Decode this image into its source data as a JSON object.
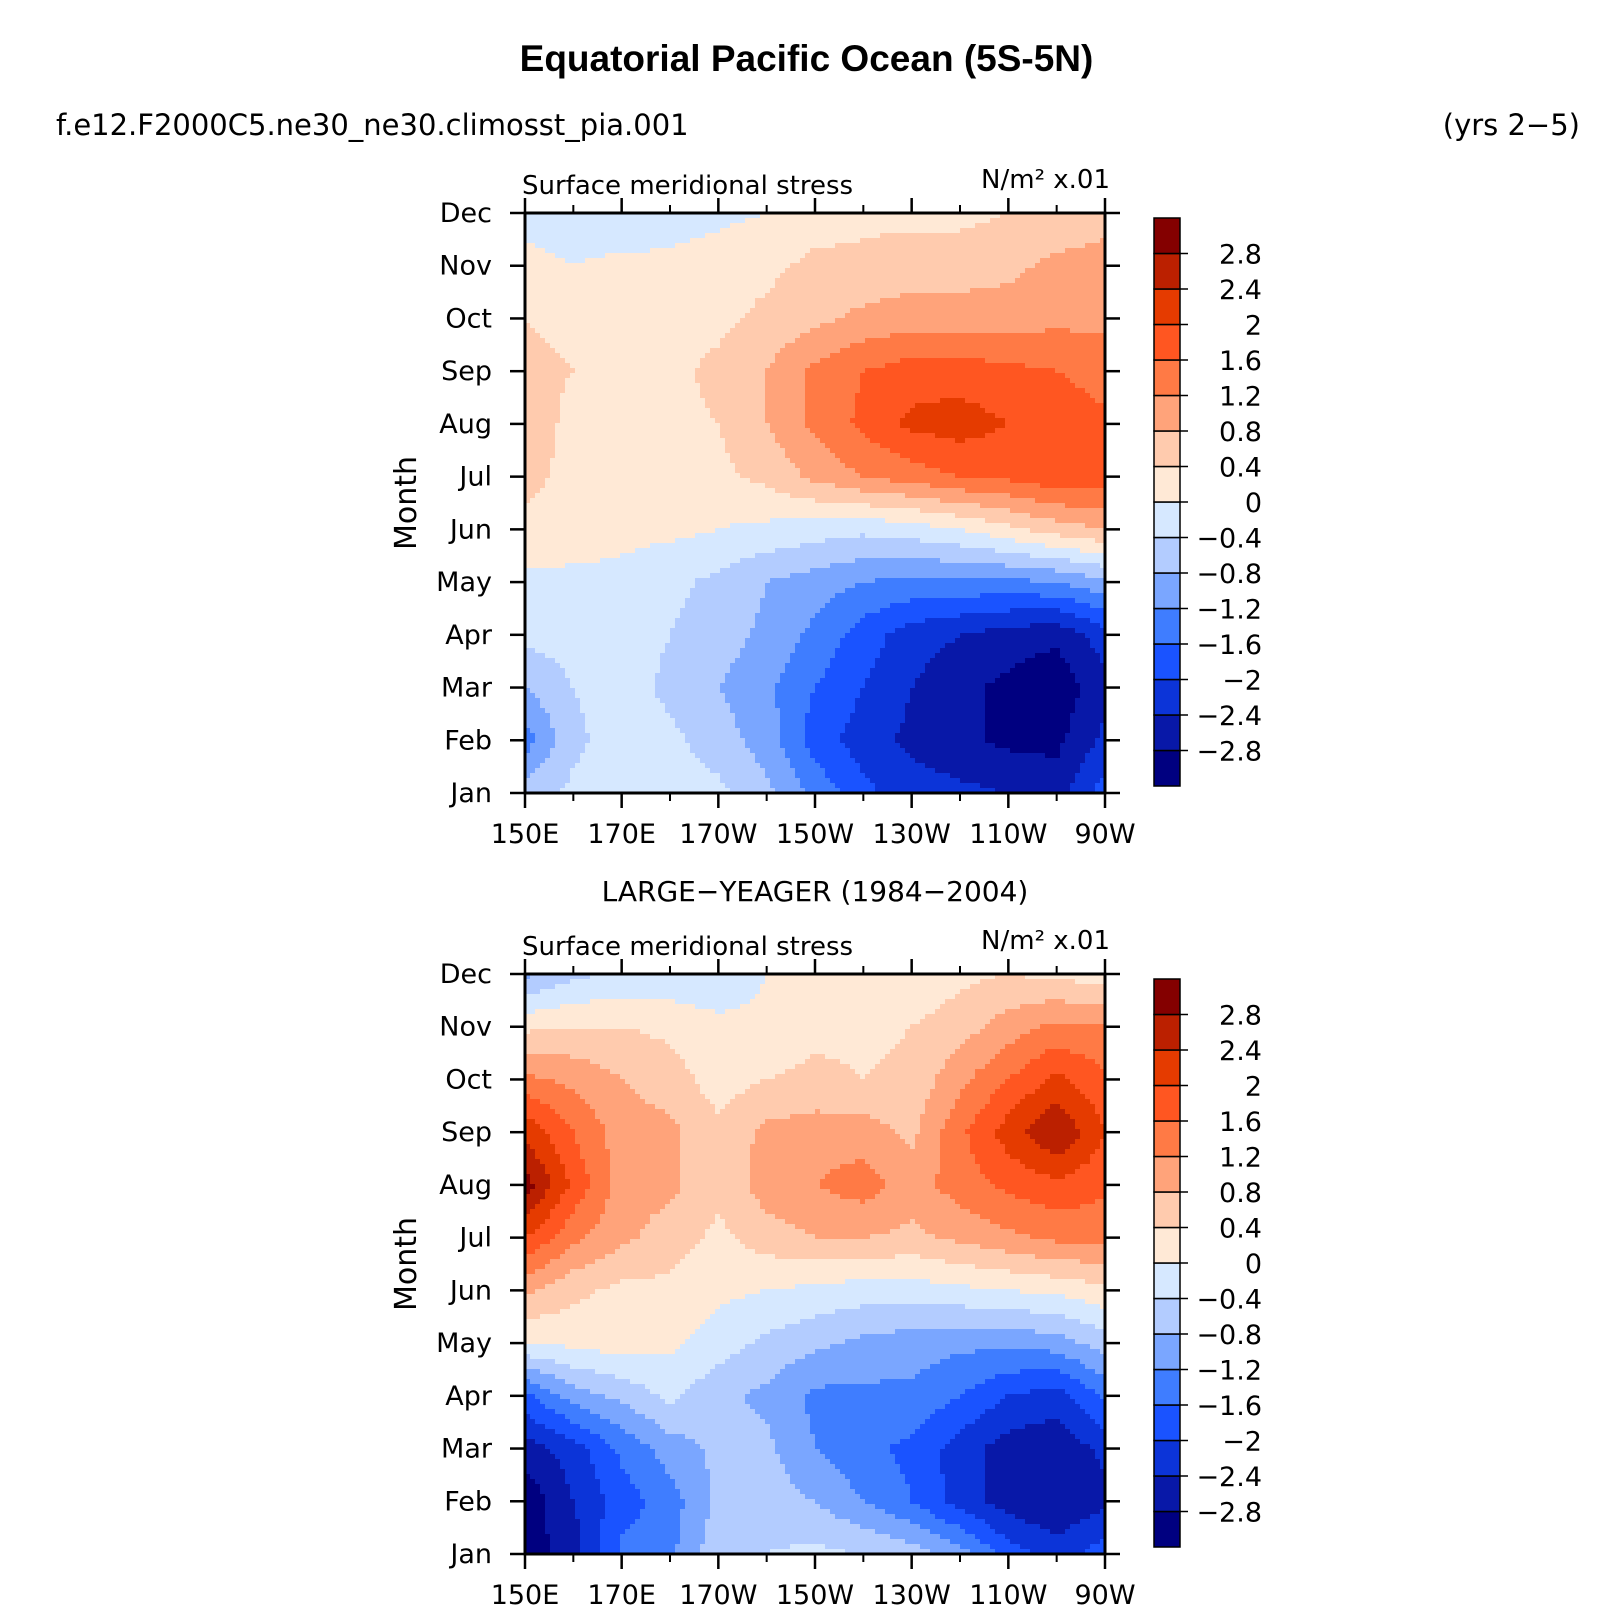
{
  "header": {
    "title": "Equatorial Pacific Ocean (5S-5N)",
    "case": "f.e12.F2000C5.ne30_ne30.climosst_pia.001",
    "years": "(yrs 2−5)"
  },
  "colorbar": {
    "colors": [
      "#000080",
      "#0818a8",
      "#0c34d8",
      "#1a53ff",
      "#3f7dff",
      "#7aa6ff",
      "#b3ccff",
      "#d6e8ff",
      "#ffe9d6",
      "#ffcbae",
      "#ffa37a",
      "#ff7a45",
      "#ff5621",
      "#e53b00",
      "#bb2000",
      "#840000"
    ],
    "labels": [
      "−2.8",
      "−2.4",
      "−2",
      "−1.6",
      "−1.2",
      "−0.8",
      "−0.4",
      "0",
      "0.4",
      "0.8",
      "1.2",
      "1.6",
      "2",
      "2.4",
      "2.8"
    ],
    "levels": [
      -2.8,
      -2.4,
      -2.0,
      -1.6,
      -1.2,
      -0.8,
      -0.4,
      0,
      0.4,
      0.8,
      1.2,
      1.6,
      2.0,
      2.4,
      2.8
    ]
  },
  "chart_data": [
    {
      "type": "heatmap",
      "panel_title": "",
      "left_string": "Surface meridional stress",
      "right_string": "N/m² x.01",
      "xlabel": "",
      "ylabel": "Month",
      "x_tick_labels": [
        "150E",
        "170E",
        "170W",
        "150W",
        "130W",
        "110W",
        "90W"
      ],
      "x_ticks_deg": [
        150,
        170,
        190,
        210,
        230,
        250,
        270
      ],
      "y_tick_labels": [
        "Jan",
        "Feb",
        "Mar",
        "Apr",
        "May",
        "Jun",
        "Jul",
        "Aug",
        "Sep",
        "Oct",
        "Nov",
        "Dec"
      ],
      "x_deg": [
        150,
        160,
        170,
        180,
        190,
        200,
        210,
        220,
        230,
        240,
        250,
        260,
        270
      ],
      "z": [
        [
          -0.6,
          -0.3,
          -0.2,
          -0.2,
          -0.3,
          -0.7,
          -1.3,
          -1.9,
          -2.2,
          -2.3,
          -2.4,
          -2.6,
          -1.8
        ],
        [
          -1.4,
          -0.5,
          -0.2,
          -0.3,
          -0.6,
          -1.0,
          -1.8,
          -2.2,
          -2.5,
          -2.7,
          -2.9,
          -2.9,
          -2.3
        ],
        [
          -0.8,
          -0.4,
          -0.2,
          -0.5,
          -0.8,
          -1.1,
          -1.6,
          -2.0,
          -2.4,
          -2.7,
          -2.9,
          -3.1,
          -2.5
        ],
        [
          -0.3,
          -0.2,
          -0.2,
          -0.4,
          -0.6,
          -0.9,
          -1.3,
          -1.8,
          -2.2,
          -2.4,
          -2.6,
          -2.7,
          -2.2
        ],
        [
          -0.1,
          -0.1,
          -0.1,
          -0.3,
          -0.5,
          -0.8,
          -1.0,
          -1.2,
          -1.3,
          -1.3,
          -1.3,
          -1.2,
          -0.9
        ],
        [
          0.3,
          0.2,
          0.1,
          0.1,
          0.0,
          -0.1,
          -0.2,
          -0.3,
          -0.2,
          0.0,
          0.3,
          0.6,
          0.8
        ],
        [
          0.5,
          0.3,
          0.2,
          0.2,
          0.3,
          0.5,
          0.9,
          1.2,
          1.4,
          1.6,
          1.7,
          1.9,
          1.8
        ],
        [
          0.6,
          0.3,
          0.2,
          0.3,
          0.4,
          0.8,
          1.3,
          1.7,
          2.1,
          2.2,
          2.0,
          1.9,
          1.7
        ],
        [
          0.5,
          0.4,
          0.3,
          0.3,
          0.5,
          0.8,
          1.3,
          1.6,
          1.8,
          1.8,
          1.7,
          1.6,
          1.4
        ],
        [
          0.4,
          0.3,
          0.2,
          0.2,
          0.3,
          0.5,
          0.7,
          0.9,
          1.0,
          1.0,
          1.0,
          1.1,
          1.1
        ],
        [
          0.1,
          0.0,
          0.1,
          0.1,
          0.2,
          0.3,
          0.5,
          0.5,
          0.6,
          0.6,
          0.7,
          0.9,
          1.0
        ],
        [
          -0.1,
          -0.2,
          -0.3,
          -0.2,
          -0.1,
          0.0,
          0.2,
          0.3,
          0.3,
          0.3,
          0.4,
          0.5,
          0.6
        ]
      ]
    },
    {
      "type": "heatmap",
      "panel_title": "LARGE−YEAGER (1984−2004)",
      "left_string": "Surface meridional stress",
      "right_string": "N/m² x.01",
      "xlabel": "",
      "ylabel": "Month",
      "x_tick_labels": [
        "150E",
        "170E",
        "170W",
        "150W",
        "130W",
        "110W",
        "90W"
      ],
      "x_ticks_deg": [
        150,
        170,
        190,
        210,
        230,
        250,
        270
      ],
      "y_tick_labels": [
        "Jan",
        "Feb",
        "Mar",
        "Apr",
        "May",
        "Jun",
        "Jul",
        "Aug",
        "Sep",
        "Oct",
        "Nov",
        "Dec"
      ],
      "x_deg": [
        150,
        160,
        170,
        180,
        190,
        200,
        210,
        220,
        230,
        240,
        250,
        260,
        270
      ],
      "z": [
        [
          -3.0,
          -2.6,
          -1.5,
          -1.3,
          -0.5,
          -0.4,
          -0.3,
          -0.4,
          -0.6,
          -1.0,
          -1.8,
          -2.2,
          -1.8
        ],
        [
          -3.1,
          -2.4,
          -1.8,
          -1.4,
          -0.7,
          -0.6,
          -0.8,
          -1.2,
          -1.6,
          -2.2,
          -2.6,
          -2.8,
          -2.5
        ],
        [
          -2.6,
          -2.2,
          -1.5,
          -1.0,
          -0.7,
          -0.7,
          -1.2,
          -1.5,
          -1.7,
          -2.2,
          -2.6,
          -2.7,
          -2.3
        ],
        [
          -1.7,
          -1.0,
          -0.7,
          -0.3,
          -0.7,
          -0.9,
          -1.3,
          -1.3,
          -1.3,
          -1.6,
          -2.0,
          -2.2,
          -1.5
        ],
        [
          0.0,
          0.1,
          0.2,
          0.1,
          -0.2,
          -0.5,
          -0.7,
          -0.9,
          -1.0,
          -1.1,
          -1.1,
          -1.0,
          -0.6
        ],
        [
          0.9,
          0.5,
          0.3,
          0.3,
          0.1,
          0.0,
          -0.1,
          -0.2,
          -0.2,
          -0.1,
          0.0,
          0.1,
          0.3
        ],
        [
          2.0,
          1.3,
          0.9,
          0.6,
          0.3,
          0.6,
          0.8,
          0.8,
          0.7,
          0.9,
          1.1,
          1.3,
          1.3
        ],
        [
          3.0,
          1.9,
          1.0,
          0.9,
          0.5,
          1.0,
          1.2,
          1.4,
          1.0,
          1.4,
          1.7,
          1.9,
          1.7
        ],
        [
          2.3,
          1.6,
          1.0,
          0.9,
          0.5,
          0.9,
          1.0,
          1.0,
          0.7,
          1.5,
          2.2,
          2.8,
          2.0
        ],
        [
          1.3,
          1.1,
          0.8,
          0.6,
          0.2,
          0.4,
          0.5,
          0.4,
          0.5,
          1.1,
          1.6,
          2.1,
          1.7
        ],
        [
          0.3,
          0.4,
          0.4,
          0.3,
          0.1,
          0.1,
          0.3,
          0.3,
          0.4,
          0.6,
          1.0,
          1.3,
          1.2
        ],
        [
          -0.9,
          -0.5,
          -0.3,
          -0.3,
          -0.3,
          0.0,
          0.2,
          0.2,
          0.1,
          0.3,
          0.4,
          0.3,
          0.2
        ]
      ]
    }
  ]
}
